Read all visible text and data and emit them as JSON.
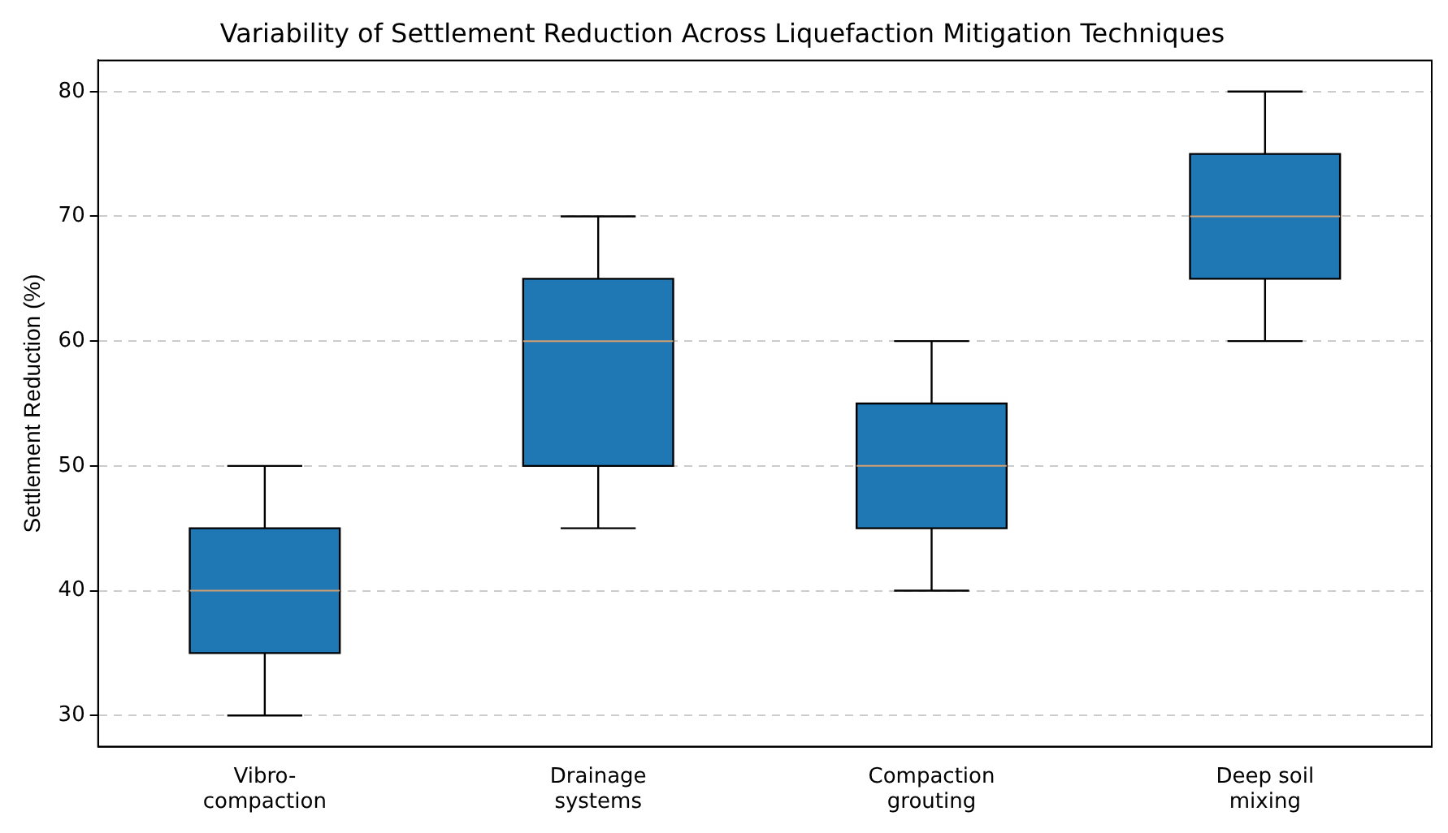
{
  "chart_data": {
    "type": "box",
    "title": "Variability of Settlement Reduction Across Liquefaction Mitigation Techniques",
    "ylabel": "Settlement Reduction (%)",
    "categories": [
      "Vibro-\ncompaction",
      "Drainage\nsystems",
      "Compaction\ngrouting",
      "Deep soil\nmixing"
    ],
    "color": "#1f77b4",
    "boxes": [
      {
        "low": 30,
        "q1": 35,
        "median": 40,
        "q3": 45,
        "high": 50
      },
      {
        "low": 45,
        "q1": 50,
        "median": 60,
        "q3": 65,
        "high": 70
      },
      {
        "low": 40,
        "q1": 45,
        "median": 50,
        "q3": 55,
        "high": 60
      },
      {
        "low": 60,
        "q1": 65,
        "median": 70,
        "q3": 75,
        "high": 80
      }
    ],
    "ylim": [
      27.5,
      82.5
    ],
    "yticks": [
      30,
      40,
      50,
      60,
      70,
      80
    ],
    "grid": "y",
    "legend": false
  }
}
